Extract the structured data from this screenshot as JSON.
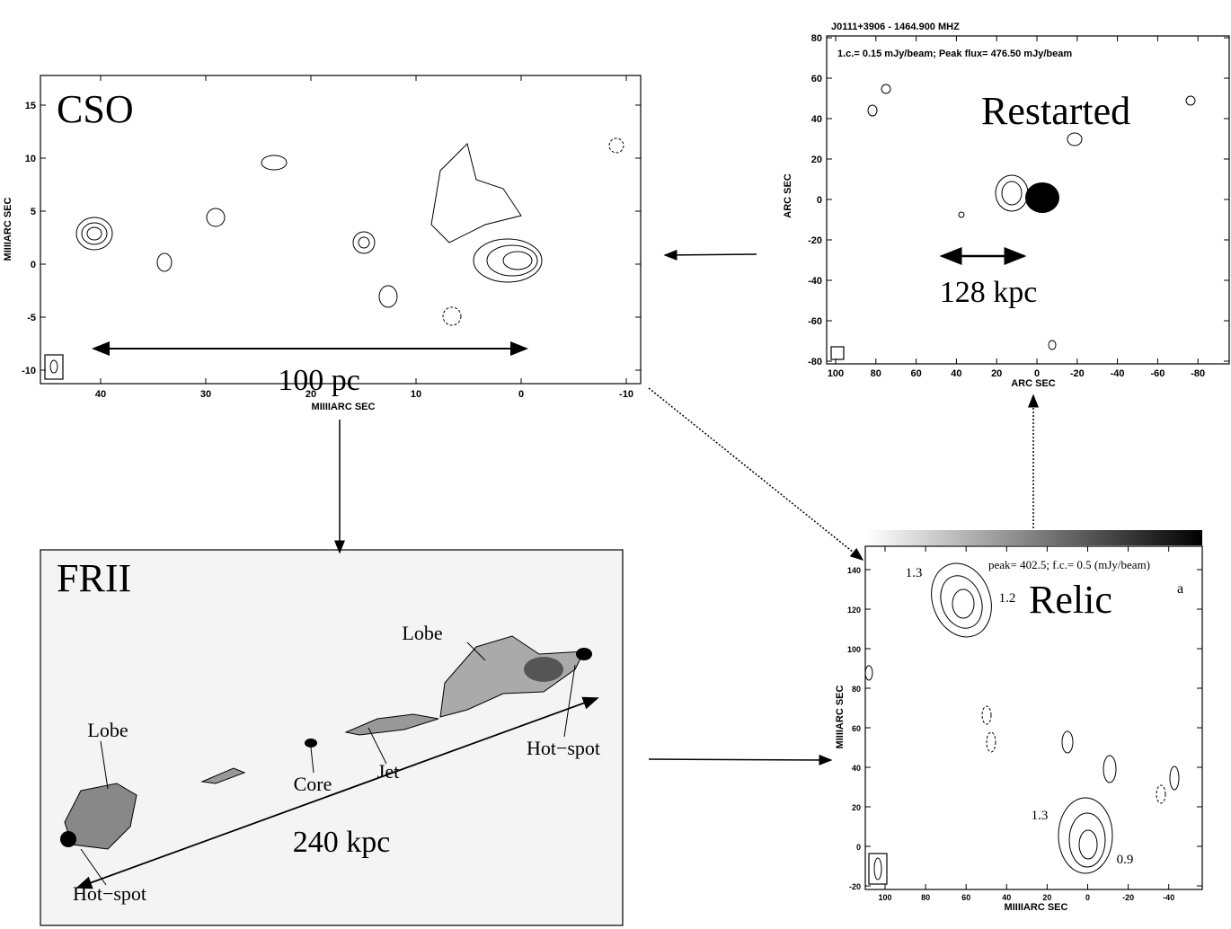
{
  "panels": [
    {
      "label": "CSO",
      "scale": "100 pc",
      "x_axis_title": "MIIIIARC SEC",
      "y_axis_title": "MIIIIARC SEC",
      "xticks": [
        "40",
        "30",
        "20",
        "10",
        "0",
        "-10"
      ],
      "yticks": [
        "15",
        "10",
        "5",
        "0",
        "-5",
        "-10"
      ]
    },
    {
      "label": "Restarted",
      "header": "J0111+3906 - 1464.900 MHZ",
      "note": "1.c.= 0.15 mJy/beam; Peak flux= 476.50 mJy/beam",
      "scale": "128 kpc",
      "x_axis_title": "ARC SEC",
      "y_axis_title": "ARC SEC",
      "xticks": [
        "100",
        "80",
        "60",
        "40",
        "20",
        "0",
        "-20",
        "-40",
        "-60",
        "-80"
      ],
      "yticks": [
        "80",
        "60",
        "40",
        "20",
        "0",
        "-20",
        "-40",
        "-60",
        "-80"
      ]
    },
    {
      "label": "FRII",
      "scale": "240 kpc",
      "annotations": [
        "Lobe",
        "Lobe",
        "Hot−spot",
        "Hot−spot",
        "Core",
        "Jet"
      ]
    },
    {
      "label": "Relic",
      "note": "peak= 402.5; f.c.= 0.5 (mJy/beam)",
      "corner": "a",
      "x_axis_title": "MIIIIARC SEC",
      "y_axis_title": "MIIIIARC SEC",
      "annotations": [
        "1.3",
        "1.2",
        "1.3",
        "0.9"
      ],
      "xticks": [
        "100",
        "80",
        "60",
        "40",
        "20",
        "0",
        "-20",
        "-40"
      ],
      "yticks": [
        "140",
        "120",
        "100",
        "80",
        "60",
        "40",
        "20",
        "0",
        "-20"
      ]
    }
  ]
}
